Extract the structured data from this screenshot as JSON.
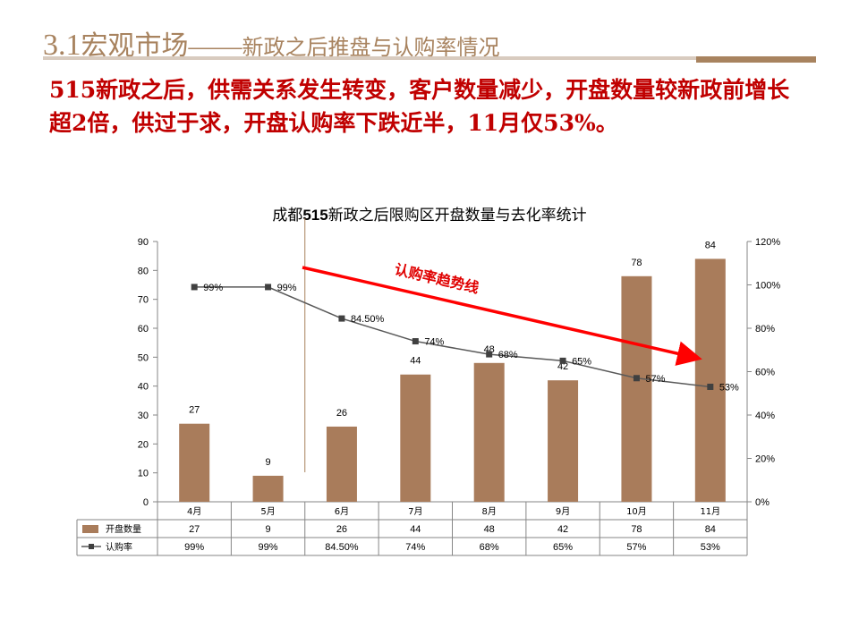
{
  "header": {
    "number": "3.1",
    "title": "宏观市场",
    "dash": "——",
    "subtitle": "新政之后推盘与认购率情况"
  },
  "headline": "515新政之后，供需关系发生转变，客户数量减少，开盘数量较新政前增长超2倍，供过于求，开盘认购率下跌近半，11月仅53%。",
  "chart_data": {
    "type": "bar",
    "title_prefix": "成都",
    "title_bold": "515",
    "title_suffix": "新政之后限购区开盘数量与去化率统计",
    "categories": [
      "4月",
      "5月",
      "6月",
      "7月",
      "8月",
      "9月",
      "10月",
      "11月"
    ],
    "series": [
      {
        "name": "开盘数量",
        "type": "bar",
        "axis": "left",
        "color": "#a97c5b",
        "values": [
          27,
          9,
          26,
          44,
          48,
          42,
          78,
          84
        ],
        "labels": [
          "27",
          "9",
          "26",
          "44",
          "48",
          "42",
          "78",
          "84"
        ]
      },
      {
        "name": "认购率",
        "type": "line",
        "axis": "right",
        "color": "#595959",
        "values": [
          99,
          99,
          84.5,
          74,
          68,
          65,
          57,
          53
        ],
        "labels": [
          "99%",
          "99%",
          "84.50%",
          "74%",
          "68%",
          "65%",
          "57%",
          "53%"
        ]
      }
    ],
    "y_left": {
      "min": 0,
      "max": 90,
      "ticks": [
        "0",
        "10",
        "20",
        "30",
        "40",
        "50",
        "60",
        "70",
        "80",
        "90"
      ]
    },
    "y_right": {
      "min": 0,
      "max": 120,
      "ticks": [
        "0%",
        "20%",
        "40%",
        "60%",
        "80%",
        "100%",
        "120%"
      ]
    },
    "annotation": "认购率趋势线",
    "annotation_color": "#ff0000",
    "legend": "data-table"
  }
}
